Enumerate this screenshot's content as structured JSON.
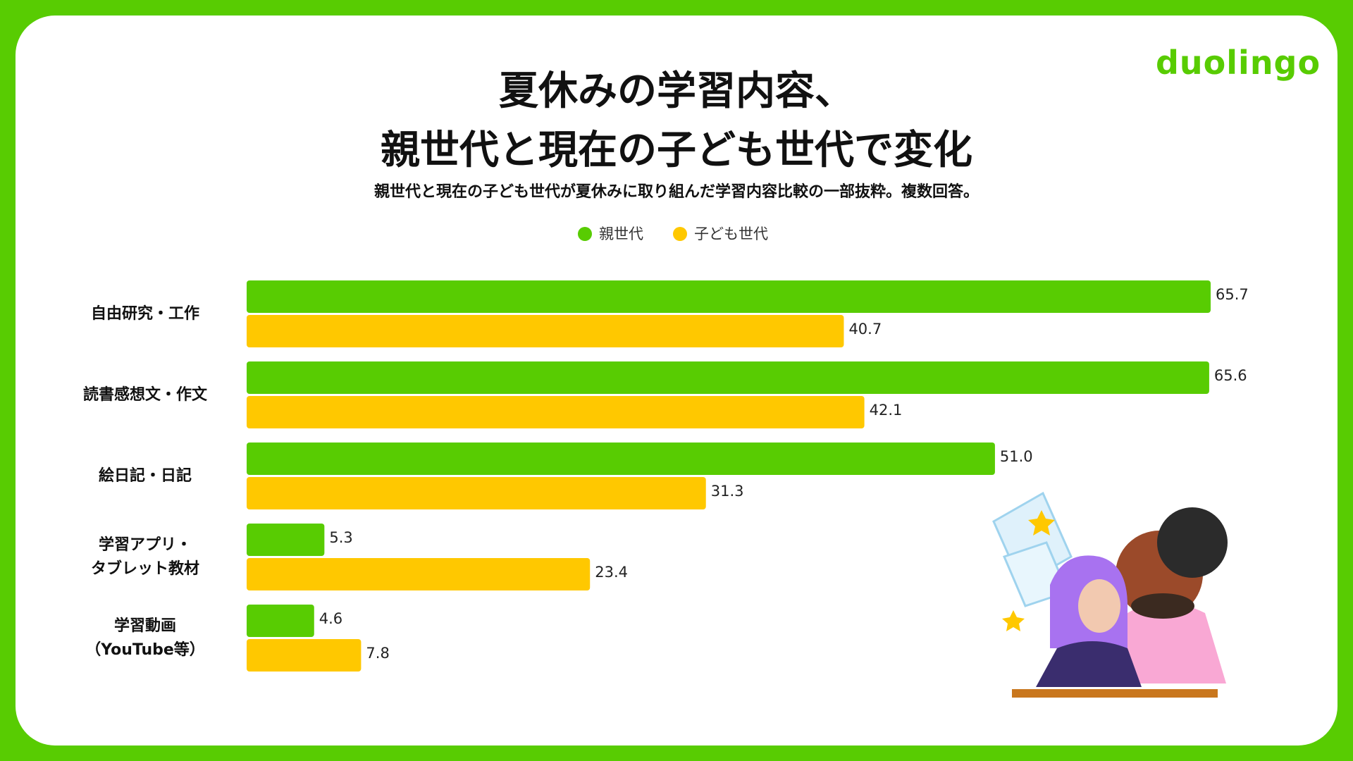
{
  "logo": "duolingo",
  "chart_data": {
    "type": "bar",
    "orientation": "horizontal",
    "title": "夏休みの学習内容、\n親世代と現在の子ども世代で変化",
    "subtitle": "親世代と現在の子ども世代が夏休みに取り組んだ学習内容比較の一部抜粋。複数回答。",
    "categories": [
      "自由研究・工作",
      "読書感想文・作文",
      "絵日記・日記",
      "学習アプリ・\nタブレット教材",
      "学習動画\n（YouTube等）"
    ],
    "legend": "top",
    "series": [
      {
        "name": "親世代",
        "color": "#58cc02",
        "values": [
          65.7,
          65.6,
          51.0,
          5.3,
          4.6
        ],
        "value_labels": [
          "65.7",
          "65.6",
          "51.0",
          "5.3",
          "4.6"
        ]
      },
      {
        "name": "子ども世代",
        "color": "#ffc800",
        "values": [
          40.7,
          42.1,
          31.3,
          23.4,
          7.8
        ],
        "value_labels": [
          "40.7",
          "42.1",
          "31.3",
          "23.4",
          "7.8"
        ]
      }
    ]
  }
}
